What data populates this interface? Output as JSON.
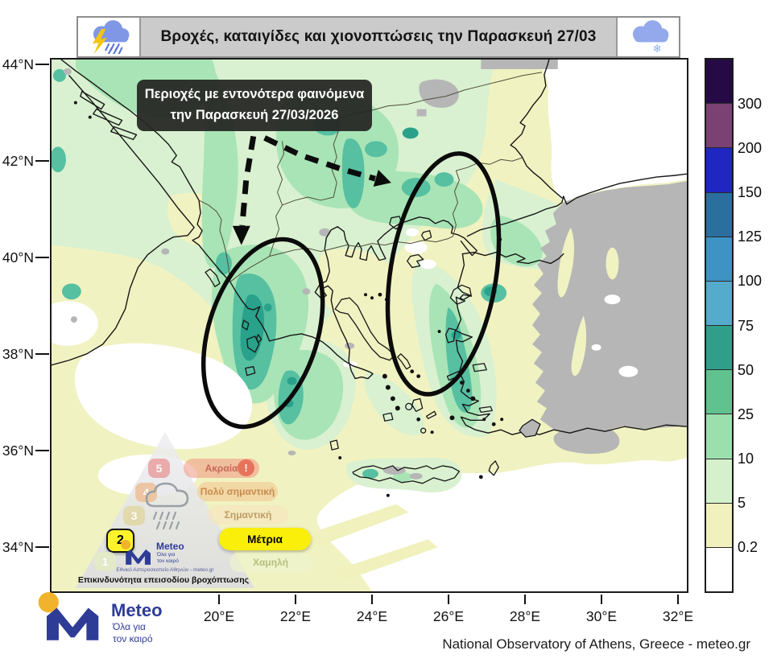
{
  "title_bar": {
    "title": "Βροχές, καταιγίδες και χιονοπτώσεις την Παρασκευή 27/03"
  },
  "annotation": {
    "line1": "Περιοχές με εντονότερα φαινόμενα",
    "line2": "την Παρασκευή 27/03/2026"
  },
  "axes": {
    "lat": [
      "44°N",
      "42°N",
      "40°N",
      "38°N",
      "36°N",
      "34°N"
    ],
    "lon": [
      "20°E",
      "22°E",
      "24°E",
      "26°E",
      "28°E",
      "30°E",
      "32°E"
    ]
  },
  "colorbar": {
    "cells": [
      {
        "color": "#250a45",
        "label": ""
      },
      {
        "color": "#7b4173",
        "label": "300"
      },
      {
        "color": "#2026c0",
        "label": "200"
      },
      {
        "color": "#2a6f9e",
        "label": "150"
      },
      {
        "color": "#3c93c4",
        "label": "125"
      },
      {
        "color": "#54abcb",
        "label": "100"
      },
      {
        "color": "#2f9f8a",
        "label": "75"
      },
      {
        "color": "#5fc28f",
        "label": "50"
      },
      {
        "color": "#9bdfad",
        "label": "25"
      },
      {
        "color": "#d4f1cc",
        "label": "10"
      },
      {
        "color": "#f0f1bc",
        "label": "5"
      },
      {
        "color": "#ffffff",
        "label": "0.2"
      }
    ]
  },
  "map_colors": {
    "background": "#f1f2c1",
    "light_green": "#d9f1d0",
    "green": "#a9e4b6",
    "teal": "#56c0a1",
    "dark_teal": "#2aa18a",
    "no_data_gray": "#b6b6b6",
    "no_rain_white": "#ffffff"
  },
  "risk_legend": {
    "caption": "Επικινδυνότητα επεισοδίου βροχόπτωσης",
    "org_line": "Εθνικό Αστεροσκοπείο Αθηνών - meteo.gr",
    "active": "2",
    "exclamation": "!",
    "levels": [
      {
        "num": "5",
        "label": "Ακραία"
      },
      {
        "num": "4",
        "label": "Πολύ σημαντική"
      },
      {
        "num": "3",
        "label": "Σημαντική"
      },
      {
        "num": "2",
        "label": "Μέτρια"
      },
      {
        "num": "1",
        "label": "Χαμηλή"
      }
    ]
  },
  "logo": {
    "name": "Meteo",
    "tagline1": "Όλα για",
    "tagline2": "τον καιρό"
  },
  "attribution": "National Observatory of Athens, Greece - meteo.gr"
}
